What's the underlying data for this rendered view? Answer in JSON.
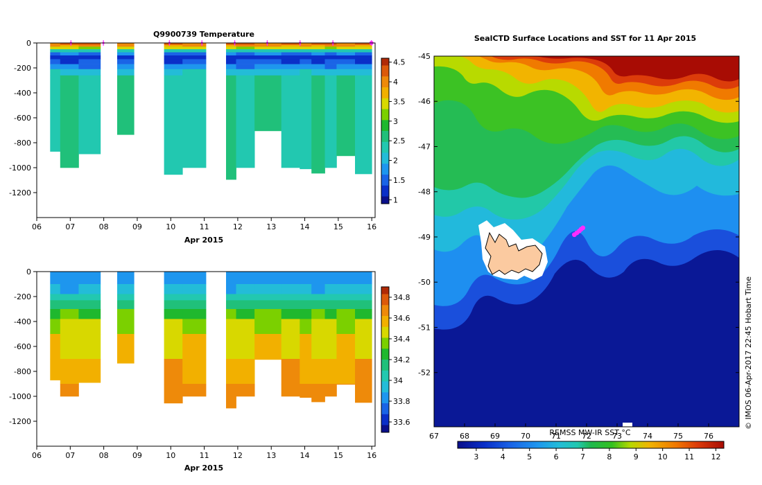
{
  "colors": {
    "depth_cmap": [
      "#0a0f8a",
      "#0a2fc8",
      "#1a64e6",
      "#1e96ee",
      "#23bcd8",
      "#22c8b0",
      "#20c07a",
      "#1fb82e",
      "#7bd000",
      "#d8d800",
      "#f2b000",
      "#ee8a0a",
      "#dc5a0a",
      "#b02a06"
    ],
    "sst_cmap": [
      "#0a0f8a",
      "#0a2fc8",
      "#1a64e6",
      "#1e96ee",
      "#23bcd8",
      "#22c8b0",
      "#1fb84e",
      "#34c020",
      "#b8d800",
      "#f0b400",
      "#f07800",
      "#dc3c0a",
      "#a80c04"
    ],
    "marker": "#ff2cff",
    "land": "#fbcaa0"
  },
  "chart_data": [
    {
      "id": "temperature",
      "type": "heatmap",
      "title": "Q9900739  Temperature",
      "xlabel": "Apr 2015",
      "xlim": [
        6,
        16.1
      ],
      "xticks": [
        "06",
        "07",
        "08",
        "09",
        "10",
        "11",
        "12",
        "13",
        "14",
        "15",
        "16"
      ],
      "ylim": [
        0,
        -1400
      ],
      "yticks": [
        0,
        -200,
        -400,
        -600,
        -800,
        -1000,
        -1200
      ],
      "colorbar": {
        "vmin": 0.9,
        "vmax": 4.6,
        "ticks": [
          "1",
          "1.5",
          "2",
          "2.5",
          "3",
          "3.5",
          "4",
          "4.5"
        ]
      },
      "profile_markers_day": [
        7.02,
        7.99,
        9.96,
        10.93,
        11.91,
        12.88,
        13.86,
        14.84,
        15.99
      ],
      "profiles": [
        {
          "t0": 6.4,
          "t1": 6.7,
          "depth": -870
        },
        {
          "t0": 6.7,
          "t1": 7.25,
          "depth": -1000
        },
        {
          "t0": 7.25,
          "t1": 7.9,
          "depth": -890
        },
        {
          "t0": 8.4,
          "t1": 8.9,
          "depth": -735
        },
        {
          "t0": 9.8,
          "t1": 10.35,
          "depth": -1055
        },
        {
          "t0": 10.35,
          "t1": 11.05,
          "depth": -1000
        },
        {
          "t0": 11.65,
          "t1": 11.95,
          "depth": -1095
        },
        {
          "t0": 11.95,
          "t1": 12.5,
          "depth": -1000
        },
        {
          "t0": 12.5,
          "t1": 13.3,
          "depth": -705
        },
        {
          "t0": 13.3,
          "t1": 13.85,
          "depth": -1000
        },
        {
          "t0": 13.85,
          "t1": 14.2,
          "depth": -1010
        },
        {
          "t0": 14.2,
          "t1": 14.6,
          "depth": -1045
        },
        {
          "t0": 14.6,
          "t1": 14.95,
          "depth": -1000
        },
        {
          "t0": 14.95,
          "t1": 15.5,
          "depth": -905
        },
        {
          "t0": 15.5,
          "t1": 16.0,
          "depth": -1050
        }
      ],
      "layer_values": [
        {
          "z0": 0,
          "z1": -15,
          "v": 4.2
        },
        {
          "z0": -15,
          "z1": -30,
          "v": 3.9
        },
        {
          "z0": -30,
          "z1": -50,
          "v": 3.4
        },
        {
          "z0": -50,
          "z1": -75,
          "v": 2.3
        },
        {
          "z0": -75,
          "z1": -100,
          "v": 1.6
        },
        {
          "z0": -100,
          "z1": -130,
          "v": 1.15
        },
        {
          "z0": -130,
          "z1": -170,
          "v": 1.35
        },
        {
          "z0": -170,
          "z1": -210,
          "v": 1.7
        },
        {
          "z0": -210,
          "z1": -260,
          "v": 2.1
        },
        {
          "z0": -260,
          "z1": -1400,
          "v": 2.45
        }
      ]
    },
    {
      "id": "salinity",
      "type": "heatmap",
      "title": "",
      "xlabel": "Apr 2015",
      "xlim": [
        6,
        16.1
      ],
      "xticks": [
        "06",
        "07",
        "08",
        "09",
        "10",
        "11",
        "12",
        "13",
        "14",
        "15",
        "16"
      ],
      "ylim": [
        0,
        -1400
      ],
      "yticks": [
        0,
        -200,
        -400,
        -600,
        -800,
        -1000,
        -1200
      ],
      "colorbar": {
        "vmin": 33.5,
        "vmax": 34.9,
        "ticks": [
          "33.6",
          "33.8",
          "34",
          "34.2",
          "34.4",
          "34.6",
          "34.8"
        ]
      },
      "layer_values": [
        {
          "z0": 0,
          "z1": -100,
          "v": 33.83
        },
        {
          "z0": -100,
          "z1": -180,
          "v": 33.9
        },
        {
          "z0": -180,
          "z1": -230,
          "v": 34.02
        },
        {
          "z0": -230,
          "z1": -300,
          "v": 34.15
        },
        {
          "z0": -300,
          "z1": -380,
          "v": 34.3
        },
        {
          "z0": -380,
          "z1": -500,
          "v": 34.42
        },
        {
          "z0": -500,
          "z1": -700,
          "v": 34.52
        },
        {
          "z0": -700,
          "z1": -900,
          "v": 34.6
        },
        {
          "z0": -900,
          "z1": -1400,
          "v": 34.67
        }
      ]
    },
    {
      "id": "sst_map",
      "type": "heatmap",
      "title": "SealCTD Surface Locations and SST for 11 Apr 2015",
      "xlim": [
        67,
        77
      ],
      "ylim": [
        -45,
        -53.2
      ],
      "xticks": [
        "67",
        "68",
        "69",
        "70",
        "71",
        "72",
        "73",
        "74",
        "75",
        "76"
      ],
      "yticks": [
        "-45",
        "-46",
        "-47",
        "-48",
        "-49",
        "-50",
        "-51",
        "-52"
      ],
      "colorbar_label": "REMSS MW-IR SST °C",
      "colorbar": {
        "vmin": 2.3,
        "vmax": 12.3,
        "ticks": [
          "3",
          "4",
          "5",
          "6",
          "7",
          "8",
          "9",
          "10",
          "11",
          "12"
        ]
      },
      "track_points": [
        [
          71.6,
          -48.95
        ],
        [
          71.68,
          -48.91
        ],
        [
          71.76,
          -48.87
        ],
        [
          71.82,
          -48.83
        ],
        [
          71.88,
          -48.8
        ]
      ],
      "credit": "© IMOS 06-Apr-2017 22:45 Hobart Time"
    }
  ]
}
